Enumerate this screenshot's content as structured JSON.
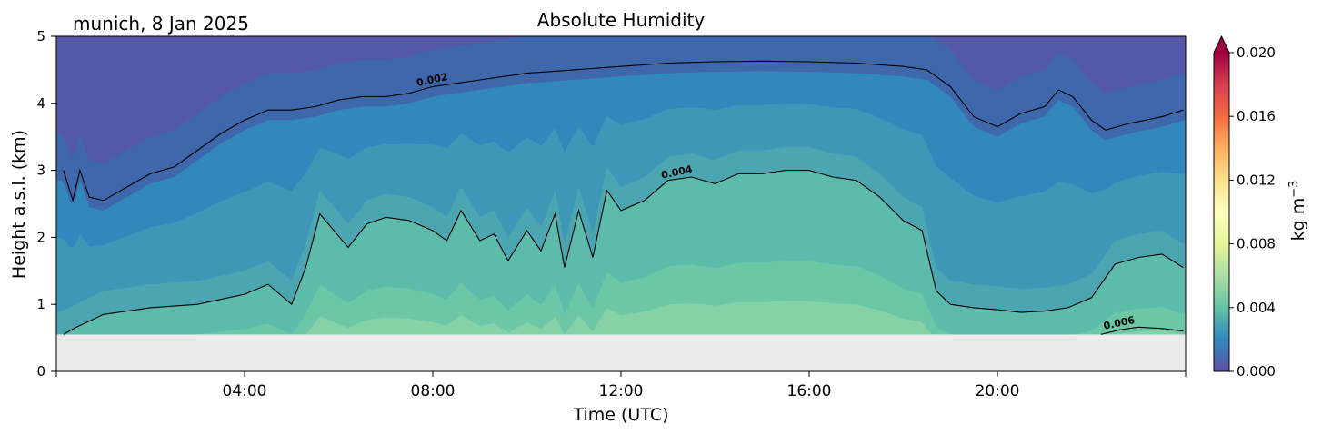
{
  "chart_data": {
    "type": "heatmap",
    "title": "Absolute Humidity",
    "subtitle": "munich, 8 Jan 2025",
    "xlabel": "Time (UTC)",
    "ylabel": "Height a.s.l. (km)",
    "xlim_hours": [
      0,
      24
    ],
    "ylim": [
      0,
      5
    ],
    "x_ticks": [
      "04:00",
      "08:00",
      "12:00",
      "16:00",
      "20:00"
    ],
    "x_tick_hours": [
      4,
      8,
      12,
      16,
      20
    ],
    "y_ticks": [
      "0",
      "1",
      "2",
      "3",
      "4",
      "5"
    ],
    "y_tick_values": [
      0,
      1,
      2,
      3,
      4,
      5
    ],
    "data_floor_km": 0.55,
    "colorbar": {
      "label": "kg m",
      "label_exponent": "−3",
      "range": [
        0,
        0.02
      ],
      "ticks": [
        "0.000",
        "0.004",
        "0.008",
        "0.012",
        "0.016",
        "0.020"
      ],
      "tick_values": [
        0,
        0.004,
        0.008,
        0.012,
        0.016,
        0.02
      ],
      "extend": "max",
      "colors": [
        "#5e4fa2",
        "#3288bd",
        "#66c2a5",
        "#abdda4",
        "#e6f598",
        "#ffffbf",
        "#fee08b",
        "#fdae61",
        "#f46d43",
        "#d53e4f",
        "#9e0142"
      ]
    },
    "contours": [
      {
        "level": "0.002",
        "label_at_hour": 8.0,
        "points": [
          [
            0.15,
            3.0
          ],
          [
            0.35,
            2.55
          ],
          [
            0.5,
            3.0
          ],
          [
            0.7,
            2.6
          ],
          [
            1.0,
            2.55
          ],
          [
            1.5,
            2.75
          ],
          [
            2.0,
            2.95
          ],
          [
            2.5,
            3.05
          ],
          [
            3.0,
            3.3
          ],
          [
            3.5,
            3.55
          ],
          [
            4.0,
            3.75
          ],
          [
            4.5,
            3.9
          ],
          [
            5.0,
            3.9
          ],
          [
            5.5,
            3.95
          ],
          [
            6.0,
            4.05
          ],
          [
            6.5,
            4.1
          ],
          [
            7.0,
            4.1
          ],
          [
            7.5,
            4.15
          ],
          [
            8.0,
            4.25
          ],
          [
            8.5,
            4.3
          ],
          [
            9.0,
            4.35
          ],
          [
            9.5,
            4.4
          ],
          [
            10.0,
            4.45
          ],
          [
            11.0,
            4.5
          ],
          [
            12.0,
            4.55
          ],
          [
            13.0,
            4.6
          ],
          [
            14.0,
            4.62
          ],
          [
            15.0,
            4.63
          ],
          [
            16.0,
            4.62
          ],
          [
            17.0,
            4.6
          ],
          [
            18.0,
            4.55
          ],
          [
            18.5,
            4.5
          ],
          [
            19.0,
            4.25
          ],
          [
            19.5,
            3.8
          ],
          [
            20.0,
            3.65
          ],
          [
            20.5,
            3.85
          ],
          [
            21.0,
            3.95
          ],
          [
            21.3,
            4.2
          ],
          [
            21.6,
            4.1
          ],
          [
            22.0,
            3.75
          ],
          [
            22.3,
            3.6
          ],
          [
            22.8,
            3.7
          ],
          [
            23.5,
            3.8
          ],
          [
            23.95,
            3.9
          ]
        ]
      },
      {
        "level": "0.004",
        "label_at_hour": 13.2,
        "points": [
          [
            0.15,
            0.55
          ],
          [
            0.4,
            0.65
          ],
          [
            1.0,
            0.85
          ],
          [
            2.0,
            0.95
          ],
          [
            3.0,
            1.0
          ],
          [
            4.0,
            1.15
          ],
          [
            4.5,
            1.3
          ],
          [
            5.0,
            1.0
          ],
          [
            5.3,
            1.55
          ],
          [
            5.6,
            2.35
          ],
          [
            5.9,
            2.1
          ],
          [
            6.2,
            1.85
          ],
          [
            6.6,
            2.2
          ],
          [
            7.0,
            2.3
          ],
          [
            7.5,
            2.25
          ],
          [
            8.0,
            2.1
          ],
          [
            8.3,
            1.95
          ],
          [
            8.6,
            2.4
          ],
          [
            9.0,
            1.95
          ],
          [
            9.3,
            2.05
          ],
          [
            9.6,
            1.65
          ],
          [
            10.0,
            2.1
          ],
          [
            10.3,
            1.8
          ],
          [
            10.6,
            2.35
          ],
          [
            10.8,
            1.55
          ],
          [
            11.1,
            2.4
          ],
          [
            11.4,
            1.7
          ],
          [
            11.7,
            2.7
          ],
          [
            12.0,
            2.4
          ],
          [
            12.5,
            2.55
          ],
          [
            13.0,
            2.85
          ],
          [
            13.5,
            2.9
          ],
          [
            14.0,
            2.8
          ],
          [
            14.5,
            2.95
          ],
          [
            15.0,
            2.95
          ],
          [
            15.5,
            3.0
          ],
          [
            16.0,
            3.0
          ],
          [
            16.5,
            2.9
          ],
          [
            17.0,
            2.85
          ],
          [
            17.5,
            2.6
          ],
          [
            18.0,
            2.25
          ],
          [
            18.4,
            2.1
          ],
          [
            18.7,
            1.2
          ],
          [
            19.0,
            1.0
          ],
          [
            19.5,
            0.95
          ],
          [
            20.0,
            0.92
          ],
          [
            20.5,
            0.88
          ],
          [
            21.0,
            0.9
          ],
          [
            21.5,
            0.95
          ],
          [
            22.0,
            1.1
          ],
          [
            22.5,
            1.6
          ],
          [
            23.0,
            1.7
          ],
          [
            23.5,
            1.75
          ],
          [
            23.95,
            1.55
          ]
        ]
      },
      {
        "level": "0.006",
        "label_at_hour": 22.6,
        "points": [
          [
            22.2,
            0.55
          ],
          [
            22.6,
            0.62
          ],
          [
            23.0,
            0.66
          ],
          [
            23.5,
            0.64
          ],
          [
            23.95,
            0.6
          ]
        ]
      }
    ]
  }
}
